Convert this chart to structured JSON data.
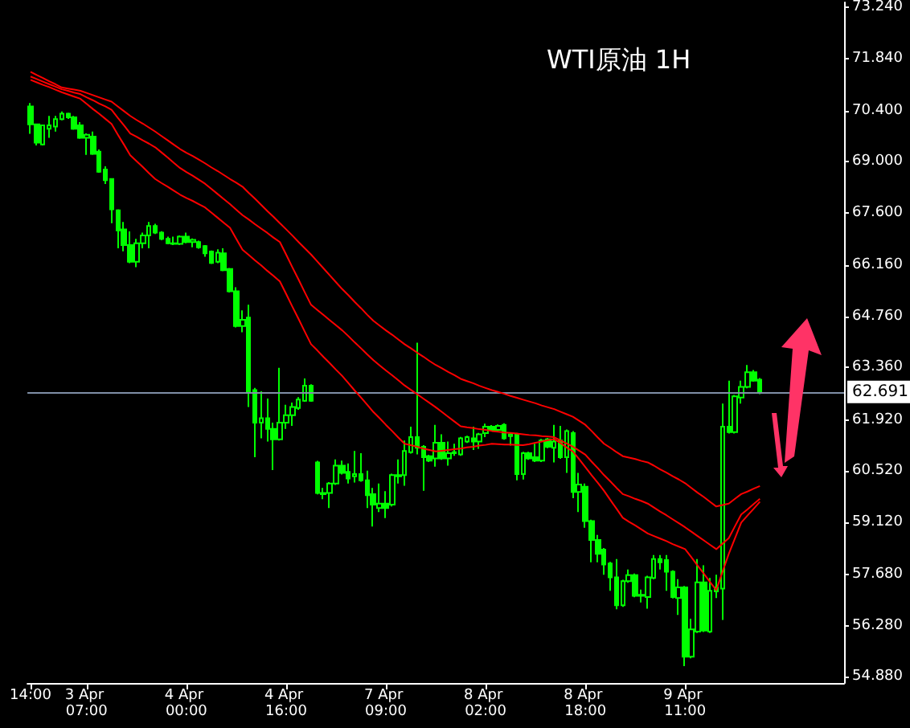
{
  "chart_data": {
    "type": "candlestick",
    "title": "WTI原油 1H",
    "color": "#00ff00",
    "categories": [
      "14:00",
      null,
      null,
      null,
      null,
      null,
      null,
      null,
      null,
      "3 Apr 07:00",
      null,
      null,
      null,
      null,
      null,
      null,
      null,
      null,
      null,
      null,
      null,
      null,
      null,
      null,
      null,
      "4 Apr 00:00",
      null,
      null,
      null,
      null,
      null,
      null,
      null,
      null,
      null,
      null,
      null,
      null,
      null,
      null,
      null,
      "4 Apr 16:00",
      null,
      null,
      null,
      null,
      null,
      null,
      null,
      null,
      null,
      null,
      null,
      null,
      null,
      null,
      null,
      "7 Apr 09:00",
      null,
      null,
      null,
      null,
      null,
      null,
      null,
      null,
      null,
      null,
      null,
      null,
      null,
      null,
      null,
      "8 Apr 02:00",
      null,
      null,
      null,
      null,
      null,
      null,
      null,
      null,
      null,
      null,
      null,
      null,
      null,
      null,
      null,
      "8 Apr 18:00",
      null,
      null,
      null,
      null,
      null,
      null,
      null,
      null,
      null,
      null,
      null,
      null,
      null,
      null,
      null,
      "9 Apr 11:00",
      null,
      null,
      null,
      null,
      null,
      null,
      null,
      null,
      null,
      null,
      null,
      null,
      null,
      null,
      null,
      null,
      null,
      null,
      null,
      null,
      null,
      null,
      null,
      null,
      null
    ],
    "ohlc": [
      [
        70.52,
        70.61,
        69.77,
        70.03
      ],
      [
        70.03,
        70.03,
        69.45,
        69.53
      ],
      [
        69.48,
        70.0,
        69.45,
        70.0
      ],
      [
        69.91,
        70.26,
        69.66,
        70.0
      ],
      [
        69.97,
        70.26,
        69.83,
        70.17
      ],
      [
        70.17,
        70.38,
        70.14,
        70.32
      ],
      [
        70.32,
        70.35,
        70.18,
        70.22
      ],
      [
        70.22,
        70.26,
        69.88,
        69.91
      ],
      [
        70.0,
        70.09,
        69.63,
        69.66
      ],
      [
        69.66,
        69.78,
        69.19,
        69.74
      ],
      [
        69.69,
        69.83,
        69.19,
        69.22
      ],
      [
        69.28,
        69.34,
        68.7,
        68.73
      ],
      [
        68.79,
        68.88,
        68.39,
        68.5
      ],
      [
        68.53,
        68.55,
        67.32,
        67.7
      ],
      [
        67.67,
        67.7,
        66.63,
        67.12
      ],
      [
        67.15,
        67.35,
        66.55,
        66.72
      ],
      [
        66.72,
        67.09,
        66.22,
        66.26
      ],
      [
        66.26,
        66.89,
        66.11,
        66.77
      ],
      [
        66.77,
        67.06,
        66.63,
        66.98
      ],
      [
        66.98,
        67.35,
        66.63,
        67.24
      ],
      [
        67.24,
        67.3,
        67.02,
        67.06
      ],
      [
        67.06,
        67.1,
        66.85,
        66.89
      ],
      [
        66.89,
        66.95,
        66.74,
        66.77
      ],
      [
        66.77,
        66.95,
        66.72,
        66.75
      ],
      [
        66.75,
        66.98,
        66.72,
        66.95
      ],
      [
        66.95,
        67.06,
        66.77,
        66.8
      ],
      [
        66.8,
        66.9,
        66.66,
        66.86
      ],
      [
        66.8,
        66.84,
        66.62,
        66.66
      ],
      [
        66.69,
        66.72,
        66.4,
        66.49
      ],
      [
        66.54,
        66.57,
        66.2,
        66.23
      ],
      [
        66.26,
        66.6,
        66.22,
        66.51
      ],
      [
        66.49,
        66.63,
        66.0,
        66.03
      ],
      [
        66.06,
        66.09,
        65.42,
        65.45
      ],
      [
        65.45,
        65.56,
        64.46,
        64.5
      ],
      [
        64.5,
        64.93,
        64.33,
        64.67
      ],
      [
        64.73,
        65.08,
        62.28,
        62.71
      ],
      [
        62.74,
        62.8,
        60.9,
        61.85
      ],
      [
        61.85,
        62.71,
        61.42,
        61.97
      ],
      [
        61.97,
        62.51,
        61.33,
        61.68
      ],
      [
        61.68,
        61.85,
        60.55,
        61.39
      ],
      [
        61.39,
        63.35,
        61.36,
        61.85
      ],
      [
        61.85,
        62.34,
        61.68,
        62.05
      ],
      [
        62.05,
        62.4,
        61.76,
        62.28
      ],
      [
        62.25,
        62.55,
        62.2,
        62.48
      ],
      [
        62.45,
        63.06,
        62.42,
        62.86
      ],
      [
        62.86,
        62.9,
        62.42,
        62.45
      ],
      [
        60.76,
        60.8,
        59.88,
        59.92
      ],
      [
        59.92,
        60.06,
        59.75,
        59.89
      ],
      [
        59.92,
        60.22,
        59.51,
        60.18
      ],
      [
        60.18,
        60.84,
        60.14,
        60.67
      ],
      [
        60.67,
        60.81,
        60.43,
        60.47
      ],
      [
        60.5,
        60.73,
        60.18,
        60.32
      ],
      [
        60.38,
        61.07,
        60.21,
        60.44
      ],
      [
        60.44,
        61.01,
        60.23,
        60.27
      ],
      [
        60.27,
        60.53,
        59.51,
        59.86
      ],
      [
        59.89,
        60.06,
        59.0,
        59.6
      ],
      [
        59.51,
        60.18,
        59.4,
        59.63
      ],
      [
        59.63,
        59.97,
        59.23,
        59.51
      ],
      [
        59.6,
        60.45,
        59.55,
        60.41
      ],
      [
        60.41,
        60.84,
        60.18,
        60.38
      ],
      [
        60.41,
        61.36,
        60.12,
        61.07
      ],
      [
        61.04,
        61.74,
        61.0,
        61.45
      ],
      [
        61.45,
        64.04,
        60.98,
        61.16
      ],
      [
        61.19,
        61.23,
        59.98,
        60.9
      ],
      [
        60.93,
        60.97,
        60.77,
        60.81
      ],
      [
        60.87,
        61.79,
        60.64,
        61.3
      ],
      [
        61.3,
        61.53,
        60.83,
        60.87
      ],
      [
        60.87,
        61.33,
        60.67,
        61.01
      ],
      [
        61.01,
        61.27,
        60.94,
        61.04
      ],
      [
        60.98,
        61.46,
        60.94,
        61.42
      ],
      [
        61.33,
        61.49,
        61.29,
        61.45
      ],
      [
        61.42,
        61.74,
        61.1,
        61.33
      ],
      [
        61.33,
        61.57,
        61.13,
        61.53
      ],
      [
        61.56,
        61.82,
        61.45,
        61.74
      ],
      [
        61.74,
        61.78,
        61.61,
        61.65
      ],
      [
        61.65,
        61.8,
        61.61,
        61.76
      ],
      [
        61.79,
        61.83,
        61.38,
        61.42
      ],
      [
        61.48,
        61.57,
        61.22,
        61.53
      ],
      [
        61.53,
        61.57,
        60.27,
        60.44
      ],
      [
        60.44,
        61.05,
        60.29,
        61.01
      ],
      [
        61.01,
        61.05,
        60.83,
        60.87
      ],
      [
        60.9,
        61.27,
        60.77,
        60.81
      ],
      [
        60.81,
        61.4,
        60.77,
        61.36
      ],
      [
        61.39,
        61.43,
        61.15,
        61.19
      ],
      [
        61.16,
        61.79,
        60.76,
        61.33
      ],
      [
        61.36,
        61.76,
        60.86,
        60.9
      ],
      [
        60.9,
        61.66,
        60.47,
        61.62
      ],
      [
        61.56,
        61.62,
        59.78,
        59.95
      ],
      [
        59.95,
        60.47,
        59.4,
        60.15
      ],
      [
        60.09,
        60.18,
        58.97,
        59.15
      ],
      [
        59.15,
        59.19,
        58.02,
        58.63
      ],
      [
        58.63,
        58.77,
        58.02,
        58.25
      ],
      [
        58.37,
        58.41,
        57.68,
        57.96
      ],
      [
        57.99,
        58.03,
        57.24,
        57.61
      ],
      [
        57.61,
        58.11,
        56.73,
        56.84
      ],
      [
        56.84,
        57.54,
        56.8,
        57.5
      ],
      [
        57.5,
        57.82,
        57.46,
        57.67
      ],
      [
        57.67,
        57.71,
        57.06,
        57.1
      ],
      [
        57.1,
        57.27,
        56.92,
        57.13
      ],
      [
        57.07,
        57.65,
        56.75,
        57.61
      ],
      [
        57.59,
        58.22,
        57.55,
        58.11
      ],
      [
        58.11,
        58.22,
        57.82,
        58.02
      ],
      [
        58.08,
        58.22,
        57.24,
        57.76
      ],
      [
        57.76,
        57.8,
        57.03,
        57.07
      ],
      [
        57.04,
        57.56,
        56.58,
        57.33
      ],
      [
        57.33,
        57.37,
        55.17,
        55.43
      ],
      [
        55.43,
        56.47,
        55.39,
        56.18
      ],
      [
        56.12,
        58.11,
        56.08,
        57.47
      ],
      [
        57.47,
        57.94,
        56.11,
        56.15
      ],
      [
        56.12,
        57.59,
        56.08,
        57.24
      ],
      [
        57.22,
        57.68,
        57.04,
        57.33
      ],
      [
        57.3,
        62.37,
        56.44,
        61.74
      ],
      [
        61.74,
        63.0,
        61.55,
        61.59
      ],
      [
        61.59,
        62.61,
        61.55,
        62.57
      ],
      [
        62.54,
        63.0,
        62.37,
        62.83
      ],
      [
        62.83,
        63.43,
        62.79,
        63.23
      ],
      [
        63.23,
        63.29,
        62.97,
        63.0
      ],
      [
        63.03,
        63.07,
        62.63,
        62.691
      ],
      null,
      null,
      null,
      null,
      null,
      null,
      null,
      null,
      null,
      null,
      null,
      null,
      null
    ],
    "series": [
      {
        "type": "line",
        "color": "#ff0000",
        "values": [
          71.47,
          71.38,
          71.3,
          71.21,
          71.13,
          71.04,
          71.01,
          70.98,
          70.95,
          70.89,
          70.83,
          70.77,
          70.71,
          70.65,
          70.52,
          70.39,
          70.26,
          70.15,
          70.05,
          69.94,
          69.83,
          69.71,
          69.59,
          69.47,
          69.35,
          69.25,
          69.16,
          69.06,
          68.96,
          68.85,
          68.75,
          68.64,
          68.53,
          68.43,
          68.32,
          68.15,
          67.99,
          67.82,
          67.65,
          67.49,
          67.32,
          67.15,
          66.98,
          66.8,
          66.63,
          66.46,
          66.27,
          66.08,
          65.89,
          65.7,
          65.51,
          65.34,
          65.16,
          64.99,
          64.81,
          64.64,
          64.51,
          64.38,
          64.26,
          64.13,
          64.0,
          63.89,
          63.77,
          63.66,
          63.54,
          63.43,
          63.34,
          63.24,
          63.15,
          63.05,
          62.99,
          62.93,
          62.86,
          62.8,
          62.74,
          62.69,
          62.64,
          62.58,
          62.53,
          62.48,
          62.43,
          62.38,
          62.32,
          62.27,
          62.22,
          62.15,
          62.08,
          62.01,
          61.9,
          61.79,
          61.62,
          61.44,
          61.27,
          61.16,
          61.04,
          60.93,
          60.89,
          60.85,
          60.8,
          60.76,
          60.67,
          60.57,
          60.48,
          60.38,
          60.29,
          60.19,
          60.06,
          59.93,
          59.81,
          59.68,
          59.55,
          59.59,
          59.63,
          59.76,
          59.89,
          59.96,
          60.04,
          60.11,
          null,
          null,
          null,
          null,
          null,
          null,
          null,
          null,
          null,
          null,
          null,
          null,
          null
        ]
      },
      {
        "type": "line",
        "color": "#ff0000",
        "values": [
          71.34,
          71.27,
          71.2,
          71.13,
          71.06,
          70.99,
          70.95,
          70.9,
          70.86,
          70.77,
          70.69,
          70.6,
          70.52,
          70.43,
          70.21,
          70.0,
          69.78,
          69.69,
          69.59,
          69.5,
          69.4,
          69.26,
          69.12,
          68.97,
          68.83,
          68.72,
          68.62,
          68.51,
          68.4,
          68.26,
          68.12,
          67.98,
          67.84,
          67.69,
          67.54,
          67.42,
          67.29,
          67.17,
          67.05,
          66.92,
          66.8,
          66.46,
          66.11,
          65.77,
          65.42,
          65.08,
          64.94,
          64.8,
          64.66,
          64.52,
          64.38,
          64.22,
          64.05,
          63.89,
          63.72,
          63.56,
          63.42,
          63.28,
          63.15,
          63.01,
          62.87,
          62.75,
          62.63,
          62.51,
          62.39,
          62.27,
          62.14,
          62.01,
          61.88,
          61.75,
          61.72,
          61.7,
          61.67,
          61.65,
          61.62,
          61.6,
          61.58,
          61.57,
          61.55,
          61.53,
          61.51,
          61.5,
          61.48,
          61.47,
          61.45,
          61.36,
          61.28,
          61.19,
          61.08,
          60.97,
          60.78,
          60.6,
          60.41,
          60.24,
          60.06,
          59.89,
          59.83,
          59.76,
          59.7,
          59.63,
          59.52,
          59.41,
          59.31,
          59.2,
          59.09,
          58.98,
          58.86,
          58.74,
          58.62,
          58.5,
          58.38,
          58.53,
          58.68,
          59.01,
          59.33,
          59.47,
          59.62,
          59.76,
          null,
          null,
          null,
          null,
          null,
          null,
          null,
          null,
          null,
          null,
          null,
          null,
          null
        ]
      },
      {
        "type": "line",
        "color": "#ff0000",
        "values": [
          71.25,
          71.18,
          71.11,
          71.05,
          70.98,
          70.91,
          70.85,
          70.79,
          70.73,
          70.59,
          70.45,
          70.32,
          70.18,
          70.04,
          69.75,
          69.47,
          69.18,
          69.02,
          68.86,
          68.69,
          68.53,
          68.42,
          68.32,
          68.21,
          68.1,
          68.01,
          67.93,
          67.84,
          67.75,
          67.61,
          67.47,
          67.33,
          67.19,
          66.89,
          66.59,
          66.45,
          66.3,
          66.16,
          66.01,
          65.87,
          65.72,
          65.38,
          65.03,
          64.69,
          64.34,
          64.0,
          63.83,
          63.65,
          63.48,
          63.3,
          63.13,
          62.93,
          62.73,
          62.54,
          62.34,
          62.14,
          61.97,
          61.79,
          61.62,
          61.44,
          61.27,
          61.23,
          61.19,
          61.14,
          61.1,
          61.06,
          61.08,
          61.1,
          61.12,
          61.14,
          61.17,
          61.19,
          61.22,
          61.24,
          61.27,
          61.26,
          61.25,
          61.25,
          61.24,
          61.23,
          61.26,
          61.3,
          61.33,
          61.37,
          61.4,
          61.29,
          61.17,
          61.06,
          60.85,
          60.63,
          60.41,
          60.2,
          59.98,
          59.73,
          59.49,
          59.24,
          59.13,
          59.03,
          58.92,
          58.81,
          58.74,
          58.67,
          58.6,
          58.52,
          58.45,
          58.38,
          58.16,
          57.93,
          57.71,
          57.48,
          57.26,
          57.76,
          58.25,
          58.68,
          59.11,
          59.3,
          59.49,
          59.68,
          null,
          null,
          null,
          null,
          null,
          null,
          null,
          null,
          null,
          null,
          null,
          null,
          null
        ]
      }
    ],
    "ylim": [
      54.71,
      73.37
    ],
    "yticks": [
      {
        "value": 73.24,
        "label": "73.240"
      },
      {
        "value": 71.84,
        "label": "71.840"
      },
      {
        "value": 70.4,
        "label": "70.400"
      },
      {
        "value": 69.0,
        "label": "69.000"
      },
      {
        "value": 67.6,
        "label": "67.600"
      },
      {
        "value": 66.16,
        "label": "66.160"
      },
      {
        "value": 64.76,
        "label": "64.760"
      },
      {
        "value": 63.36,
        "label": "63.360"
      },
      {
        "value": 61.92,
        "label": "61.920"
      },
      {
        "value": 60.52,
        "label": "60.520"
      },
      {
        "value": 59.12,
        "label": "59.120"
      },
      {
        "value": 57.68,
        "label": "57.680"
      },
      {
        "value": 56.28,
        "label": "56.280"
      },
      {
        "value": 54.88,
        "label": "54.880"
      }
    ],
    "ref_lines": [
      {
        "axis": "y",
        "value": 62.691,
        "label": "62.691",
        "color": "#7f8fa6"
      }
    ],
    "marker": "none"
  }
}
